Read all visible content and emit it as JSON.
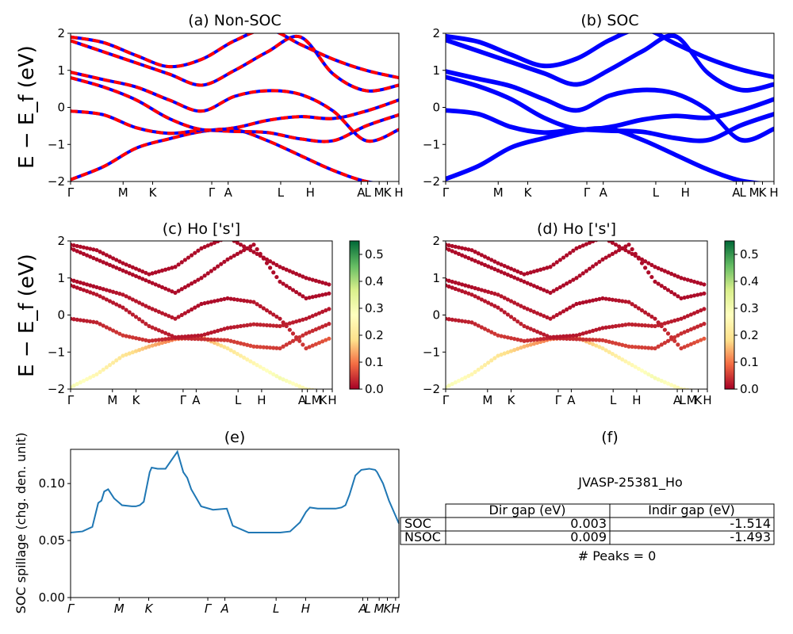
{
  "panels": {
    "a": {
      "title": "(a) Non-SOC",
      "ylabel": "E − E_f (eV)",
      "ylim": [
        -2,
        2
      ],
      "yticks": [
        "2",
        "1",
        "0",
        "−1",
        "−2"
      ]
    },
    "b": {
      "title": "(b) SOC",
      "ylim": [
        -2,
        2
      ],
      "yticks": [
        "2",
        "1",
        "0",
        "−1",
        "−2"
      ]
    },
    "c": {
      "title": "(c)  Ho ['s']",
      "ylabel": "E − E_f (eV)",
      "ylim": [
        -2,
        2
      ],
      "yticks": [
        "2",
        "1",
        "0",
        "−1",
        "−2"
      ],
      "colorbar": {
        "ticks": [
          "0.0",
          "0.1",
          "0.2",
          "0.3",
          "0.4",
          "0.5"
        ],
        "range": [
          0,
          0.55
        ],
        "cmap": [
          "#a50026",
          "#f46d43",
          "#fee08b",
          "#ffffbf",
          "#d9ef8b",
          "#66bd63",
          "#006837"
        ]
      }
    },
    "d": {
      "title": "(d) Ho ['s']",
      "ylim": [
        -2,
        2
      ],
      "yticks": [
        "2",
        "1",
        "0",
        "−1",
        "−2"
      ],
      "colorbar": {
        "ticks": [
          "0.0",
          "0.1",
          "0.2",
          "0.3",
          "0.4",
          "0.5"
        ],
        "range": [
          0,
          0.55
        ],
        "cmap": [
          "#a50026",
          "#f46d43",
          "#fee08b",
          "#ffffbf",
          "#d9ef8b",
          "#66bd63",
          "#006837"
        ]
      }
    },
    "e": {
      "title": "(e)",
      "ylabel": "SOC spillage (chg. den. unit)",
      "yticks": [
        "0.00",
        "0.05",
        "0.10"
      ],
      "ylim": [
        0,
        0.13
      ]
    },
    "f": {
      "title": "(f)"
    }
  },
  "kpath_labels": [
    "Γ",
    "M",
    "K",
    "Γ",
    "A",
    "L",
    "H",
    "A",
    "L",
    "M",
    "K",
    "H"
  ],
  "kpath_labels_e": [
    "Γ",
    "M",
    "K",
    "Γ",
    "A",
    "L",
    "H",
    "A",
    "L",
    "M",
    "K",
    "H"
  ],
  "chart_data": [
    {
      "type": "line",
      "panel": "a",
      "title": "(a) Non-SOC",
      "ylim": [
        -2,
        2
      ],
      "colors": {
        "spin_up": "#0000ff",
        "spin_down": "#ff0000"
      },
      "x": [
        0,
        1,
        2,
        3,
        4,
        5,
        6,
        7,
        8,
        9,
        10
      ],
      "series": [
        {
          "values": [
            -1.95,
            -1.6,
            -1.1,
            -0.85,
            -0.65,
            -0.6,
            -0.9,
            -1.3,
            -1.7,
            -2.0,
            -2.1
          ]
        },
        {
          "values": [
            -0.1,
            -0.2,
            -0.55,
            -0.7,
            -0.62,
            -0.65,
            -0.68,
            -0.85,
            -0.9,
            -0.5,
            -0.2
          ]
        },
        {
          "values": [
            0.8,
            0.55,
            0.2,
            -0.3,
            -0.6,
            -0.55,
            -0.35,
            -0.25,
            -0.3,
            -0.1,
            0.2
          ]
        },
        {
          "values": [
            0.95,
            0.75,
            0.55,
            0.2,
            -0.1,
            0.3,
            0.45,
            0.35,
            -0.1,
            -0.9,
            -0.6
          ]
        },
        {
          "values": [
            1.8,
            1.5,
            1.2,
            0.9,
            0.6,
            1.0,
            1.5,
            1.9,
            0.9,
            0.45,
            0.6
          ]
        },
        {
          "values": [
            1.9,
            1.75,
            1.4,
            1.1,
            1.3,
            1.8,
            2.1,
            1.7,
            1.3,
            1.0,
            0.8
          ]
        }
      ]
    },
    {
      "type": "line",
      "panel": "b",
      "title": "(b) SOC",
      "ylim": [
        -2,
        2
      ],
      "colors": {
        "bands": "#0000ff"
      },
      "x": [
        0,
        1,
        2,
        3,
        4,
        5,
        6,
        7,
        8,
        9,
        10
      ],
      "series": [
        {
          "values": [
            -1.95,
            -1.6,
            -1.1,
            -0.85,
            -0.65,
            -0.6,
            -0.9,
            -1.3,
            -1.7,
            -2.0,
            -2.1
          ]
        },
        {
          "values": [
            -0.1,
            -0.2,
            -0.55,
            -0.7,
            -0.62,
            -0.65,
            -0.68,
            -0.85,
            -0.9,
            -0.5,
            -0.2
          ]
        },
        {
          "values": [
            0.8,
            0.55,
            0.2,
            -0.3,
            -0.6,
            -0.55,
            -0.35,
            -0.25,
            -0.3,
            -0.1,
            0.2
          ]
        },
        {
          "values": [
            0.95,
            0.75,
            0.55,
            0.2,
            -0.1,
            0.3,
            0.45,
            0.35,
            -0.1,
            -0.9,
            -0.6
          ]
        },
        {
          "values": [
            1.8,
            1.5,
            1.2,
            0.9,
            0.6,
            1.0,
            1.5,
            1.9,
            0.9,
            0.45,
            0.6
          ]
        },
        {
          "values": [
            1.9,
            1.75,
            1.4,
            1.1,
            1.3,
            1.8,
            2.1,
            1.7,
            1.3,
            1.0,
            0.8
          ]
        }
      ]
    },
    {
      "type": "scatter",
      "panel": "c",
      "title": "(c)  Ho ['s']",
      "ylim": [
        -2,
        2
      ],
      "x": [
        0,
        1,
        2,
        3,
        4,
        5,
        6,
        7,
        8,
        9,
        10
      ],
      "series": [
        {
          "values": [
            -1.95,
            -1.6,
            -1.1,
            -0.85,
            -0.65,
            -0.6,
            -0.9,
            -1.3,
            -1.7,
            -2.0,
            -2.1
          ],
          "weights": [
            0.3,
            0.25,
            0.2,
            0.15,
            0.1,
            0.12,
            0.2,
            0.25,
            0.3,
            0.25,
            0.2
          ]
        },
        {
          "values": [
            -0.1,
            -0.2,
            -0.55,
            -0.7,
            -0.62,
            -0.65,
            -0.68,
            -0.85,
            -0.9,
            -0.5,
            -0.2
          ],
          "weights": [
            0.02,
            0.03,
            0.05,
            0.04,
            0.03,
            0.04,
            0.05,
            0.06,
            0.05,
            0.04,
            0.03
          ]
        },
        {
          "values": [
            0.8,
            0.55,
            0.2,
            -0.3,
            -0.6,
            -0.55,
            -0.35,
            -0.25,
            -0.3,
            -0.1,
            0.2
          ],
          "weights": [
            0.01,
            0.02,
            0.02,
            0.03,
            0.02,
            0.02,
            0.02,
            0.03,
            0.03,
            0.02,
            0.02
          ]
        },
        {
          "values": [
            0.95,
            0.75,
            0.55,
            0.2,
            -0.1,
            0.3,
            0.45,
            0.35,
            -0.1,
            -0.9,
            -0.6
          ],
          "weights": [
            0.01,
            0.01,
            0.02,
            0.02,
            0.02,
            0.01,
            0.01,
            0.02,
            0.02,
            0.05,
            0.08
          ]
        },
        {
          "values": [
            1.8,
            1.5,
            1.2,
            0.9,
            0.6,
            1.0,
            1.5,
            1.9,
            0.9,
            0.45,
            0.6
          ],
          "weights": [
            0.01,
            0.01,
            0.01,
            0.01,
            0.01,
            0.01,
            0.01,
            0.01,
            0.01,
            0.01,
            0.01
          ]
        },
        {
          "values": [
            1.9,
            1.75,
            1.4,
            1.1,
            1.3,
            1.8,
            2.1,
            1.7,
            1.3,
            1.0,
            0.8
          ],
          "weights": [
            0.01,
            0.01,
            0.01,
            0.01,
            0.01,
            0.01,
            0.01,
            0.01,
            0.01,
            0.01,
            0.01
          ]
        }
      ]
    },
    {
      "type": "scatter",
      "panel": "d",
      "title": "(d) Ho ['s']",
      "ylim": [
        -2,
        2
      ],
      "x": [
        0,
        1,
        2,
        3,
        4,
        5,
        6,
        7,
        8,
        9,
        10
      ],
      "series": [
        {
          "values": [
            -1.95,
            -1.6,
            -1.1,
            -0.85,
            -0.65,
            -0.6,
            -0.9,
            -1.3,
            -1.7,
            -2.0,
            -2.1
          ],
          "weights": [
            0.3,
            0.25,
            0.2,
            0.15,
            0.1,
            0.12,
            0.2,
            0.25,
            0.3,
            0.25,
            0.2
          ]
        },
        {
          "values": [
            -0.1,
            -0.2,
            -0.55,
            -0.7,
            -0.62,
            -0.65,
            -0.68,
            -0.85,
            -0.9,
            -0.5,
            -0.2
          ],
          "weights": [
            0.02,
            0.03,
            0.05,
            0.04,
            0.03,
            0.04,
            0.05,
            0.06,
            0.05,
            0.04,
            0.03
          ]
        },
        {
          "values": [
            0.8,
            0.55,
            0.2,
            -0.3,
            -0.6,
            -0.55,
            -0.35,
            -0.25,
            -0.3,
            -0.1,
            0.2
          ],
          "weights": [
            0.01,
            0.02,
            0.02,
            0.03,
            0.02,
            0.02,
            0.02,
            0.03,
            0.03,
            0.02,
            0.02
          ]
        },
        {
          "values": [
            0.95,
            0.75,
            0.55,
            0.2,
            -0.1,
            0.3,
            0.45,
            0.35,
            -0.1,
            -0.9,
            -0.6
          ],
          "weights": [
            0.01,
            0.01,
            0.02,
            0.02,
            0.02,
            0.01,
            0.01,
            0.02,
            0.02,
            0.05,
            0.08
          ]
        },
        {
          "values": [
            1.8,
            1.5,
            1.2,
            0.9,
            0.6,
            1.0,
            1.5,
            1.9,
            0.9,
            0.45,
            0.6
          ],
          "weights": [
            0.01,
            0.01,
            0.01,
            0.01,
            0.01,
            0.01,
            0.01,
            0.01,
            0.01,
            0.01,
            0.01
          ]
        },
        {
          "values": [
            1.9,
            1.75,
            1.4,
            1.1,
            1.3,
            1.8,
            2.1,
            1.7,
            1.3,
            1.0,
            0.8
          ],
          "weights": [
            0.01,
            0.01,
            0.01,
            0.01,
            0.01,
            0.01,
            0.01,
            0.01,
            0.01,
            0.01,
            0.01
          ]
        }
      ]
    },
    {
      "type": "line",
      "panel": "e",
      "title": "(e)",
      "ylabel": "SOC spillage (chg. den. unit)",
      "ylim": [
        0,
        0.13
      ],
      "color": "#1f77b4",
      "x": [
        0,
        0.3,
        0.55,
        0.7,
        0.78,
        0.85,
        0.95,
        1.1,
        1.3,
        1.55,
        1.65,
        1.75,
        1.85,
        2.0,
        2.05,
        2.2,
        2.4,
        2.7,
        2.85,
        2.95,
        3.05,
        3.3,
        3.6,
        3.95,
        4.1,
        4.3,
        4.5,
        4.7,
        4.85,
        5.1,
        5.3,
        5.55,
        5.8,
        5.95,
        6.05,
        6.25,
        6.55,
        6.7,
        6.85,
        6.95,
        7.05,
        7.2,
        7.35,
        7.55,
        7.7,
        7.75,
        7.9,
        8.05,
        8.3
      ],
      "values": [
        0.057,
        0.058,
        0.062,
        0.083,
        0.085,
        0.093,
        0.095,
        0.087,
        0.081,
        0.08,
        0.08,
        0.081,
        0.084,
        0.11,
        0.114,
        0.113,
        0.113,
        0.128,
        0.11,
        0.105,
        0.095,
        0.08,
        0.077,
        0.078,
        0.063,
        0.06,
        0.057,
        0.057,
        0.057,
        0.057,
        0.057,
        0.058,
        0.066,
        0.075,
        0.079,
        0.078,
        0.078,
        0.078,
        0.079,
        0.081,
        0.09,
        0.107,
        0.112,
        0.113,
        0.112,
        0.11,
        0.1,
        0.085,
        0.065
      ]
    }
  ],
  "table": {
    "material": "JVASP-25381_Ho",
    "columns": [
      "Dir gap (eV)",
      "Indir gap (eV)"
    ],
    "rows": [
      {
        "label": "SOC",
        "dir": "0.003",
        "indir": "-1.514"
      },
      {
        "label": "NSOC",
        "dir": "0.009",
        "indir": "-1.493"
      }
    ],
    "peaks": "# Peaks = 0"
  }
}
